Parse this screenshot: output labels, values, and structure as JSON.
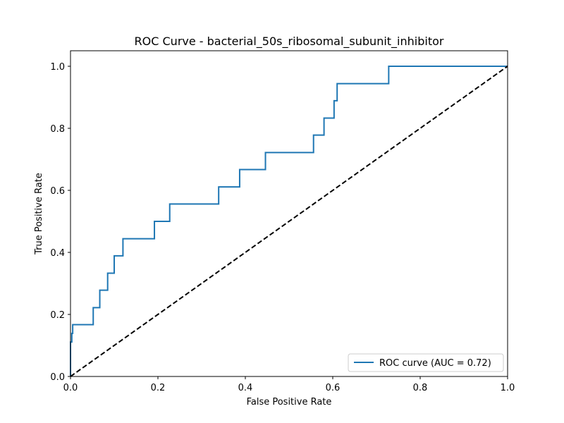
{
  "chart_data": {
    "type": "line",
    "title": "ROC Curve - bacterial_50s_ribosomal_subunit_inhibitor",
    "xlabel": "False Positive Rate",
    "ylabel": "True Positive Rate",
    "xlim": [
      0.0,
      1.0
    ],
    "ylim": [
      0.0,
      1.05
    ],
    "xticks": [
      0.0,
      0.2,
      0.4,
      0.6,
      0.8,
      1.0
    ],
    "yticks": [
      0.0,
      0.2,
      0.4,
      0.6,
      0.8,
      1.0
    ],
    "xtick_labels": [
      "0.0",
      "0.2",
      "0.4",
      "0.6",
      "0.8",
      "1.0"
    ],
    "ytick_labels": [
      "0.0",
      "0.2",
      "0.4",
      "0.6",
      "0.8",
      "1.0"
    ],
    "grid": false,
    "legend_position": "lower-right",
    "series": [
      {
        "name": "ROC curve (AUC = 0.72)",
        "color": "#1f77b4",
        "style": "solid",
        "x": [
          0.0,
          0.0,
          0.003,
          0.003,
          0.005,
          0.005,
          0.052,
          0.052,
          0.067,
          0.067,
          0.085,
          0.085,
          0.1,
          0.1,
          0.12,
          0.12,
          0.192,
          0.192,
          0.227,
          0.227,
          0.339,
          0.339,
          0.387,
          0.387,
          0.446,
          0.446,
          0.556,
          0.556,
          0.58,
          0.58,
          0.603,
          0.603,
          0.61,
          0.61,
          0.728,
          0.728,
          1.0
        ],
        "y": [
          0.0,
          0.111,
          0.111,
          0.139,
          0.139,
          0.167,
          0.167,
          0.222,
          0.222,
          0.278,
          0.278,
          0.333,
          0.333,
          0.389,
          0.389,
          0.444,
          0.444,
          0.5,
          0.5,
          0.556,
          0.556,
          0.611,
          0.611,
          0.667,
          0.667,
          0.722,
          0.722,
          0.778,
          0.778,
          0.833,
          0.833,
          0.889,
          0.889,
          0.944,
          0.944,
          1.0,
          1.0
        ]
      },
      {
        "name": "",
        "color": "#000000",
        "style": "dashed",
        "x": [
          0.0,
          1.0
        ],
        "y": [
          0.0,
          1.0
        ]
      }
    ]
  }
}
